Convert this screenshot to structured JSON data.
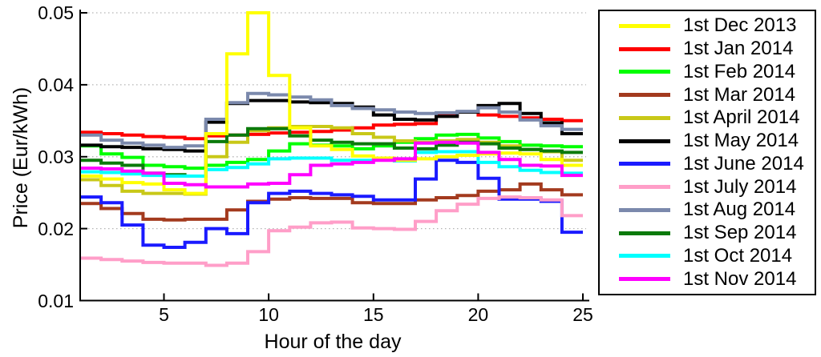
{
  "chart_data": {
    "type": "line",
    "line_style": "stairs",
    "title": "",
    "xlabel": "Hour of the day",
    "ylabel": "Price (Eur/kWh)",
    "xlim": [
      1,
      25
    ],
    "ylim": [
      0.01,
      0.05
    ],
    "xticks": [
      5,
      10,
      15,
      20,
      25
    ],
    "yticks": [
      0.01,
      0.02,
      0.03,
      0.04,
      0.05
    ],
    "xtick_labels": [
      "5",
      "10",
      "15",
      "20",
      "25"
    ],
    "ytick_labels": [
      "0.01",
      "0.02",
      "0.03",
      "0.04",
      "0.05"
    ],
    "grid": "horizontal-dotted",
    "grid_color": "#b3b3b3",
    "axis_color": "#000000",
    "legend_position": "outside-right",
    "x": [
      1,
      2,
      3,
      4,
      5,
      6,
      7,
      8,
      9,
      10,
      11,
      12,
      13,
      14,
      15,
      16,
      17,
      18,
      19,
      20,
      21,
      22,
      23,
      24
    ],
    "series": [
      {
        "name": "1st Dec 2013",
        "color": "#FFFF00",
        "values": [
          0.0273,
          0.0269,
          0.0264,
          0.0262,
          0.0254,
          0.0249,
          0.0332,
          0.0443,
          0.05,
          0.0413,
          0.034,
          0.0315,
          0.031,
          0.0301,
          0.0298,
          0.0295,
          0.0297,
          0.03,
          0.0302,
          0.0304,
          0.0305,
          0.0304,
          0.0296,
          0.0288
        ]
      },
      {
        "name": "1st Jan 2014",
        "color": "#FF0000",
        "values": [
          0.0334,
          0.0332,
          0.033,
          0.0328,
          0.0327,
          0.0325,
          0.0329,
          0.033,
          0.0331,
          0.0333,
          0.0334,
          0.0335,
          0.0337,
          0.034,
          0.0344,
          0.0345,
          0.0346,
          0.0359,
          0.0362,
          0.0358,
          0.0356,
          0.0354,
          0.0352,
          0.035
        ]
      },
      {
        "name": "1st Feb 2014",
        "color": "#00FF00",
        "values": [
          0.0315,
          0.0304,
          0.0299,
          0.0288,
          0.0286,
          0.0284,
          0.0288,
          0.0292,
          0.0296,
          0.0308,
          0.0318,
          0.0316,
          0.0315,
          0.0311,
          0.0315,
          0.032,
          0.0325,
          0.033,
          0.0331,
          0.0326,
          0.0321,
          0.0316,
          0.0315,
          0.0314
        ]
      },
      {
        "name": "1st Mar 2014",
        "color": "#A33A1E",
        "values": [
          0.0235,
          0.0228,
          0.0221,
          0.0213,
          0.0212,
          0.0213,
          0.0213,
          0.0226,
          0.0238,
          0.0241,
          0.0243,
          0.0242,
          0.0242,
          0.0236,
          0.0235,
          0.0235,
          0.024,
          0.0243,
          0.0246,
          0.0252,
          0.0254,
          0.0262,
          0.0254,
          0.0247
        ]
      },
      {
        "name": "1st April 2014",
        "color": "#C8C818",
        "values": [
          0.0268,
          0.026,
          0.0252,
          0.0249,
          0.0249,
          0.0248,
          0.03,
          0.032,
          0.0336,
          0.034,
          0.0342,
          0.0342,
          0.034,
          0.0332,
          0.0327,
          0.0322,
          0.032,
          0.0322,
          0.0324,
          0.032,
          0.0315,
          0.031,
          0.0307,
          0.0295
        ]
      },
      {
        "name": "1st May 2014",
        "color": "#000000",
        "values": [
          0.0316,
          0.0314,
          0.0313,
          0.0311,
          0.031,
          0.0308,
          0.0348,
          0.0374,
          0.0378,
          0.0378,
          0.0376,
          0.0375,
          0.0374,
          0.0369,
          0.0358,
          0.0352,
          0.0351,
          0.0356,
          0.0362,
          0.0371,
          0.0374,
          0.036,
          0.0347,
          0.0332
        ]
      },
      {
        "name": "1st June 2014",
        "color": "#1A1AFF",
        "values": [
          0.0244,
          0.0236,
          0.0205,
          0.0177,
          0.0174,
          0.0181,
          0.02,
          0.0193,
          0.0236,
          0.0249,
          0.0252,
          0.0249,
          0.0247,
          0.0245,
          0.024,
          0.024,
          0.0269,
          0.0295,
          0.0292,
          0.027,
          0.0241,
          0.0241,
          0.0238,
          0.0195
        ]
      },
      {
        "name": "1st July 2014",
        "color": "#FF9EC8",
        "values": [
          0.0159,
          0.0157,
          0.0155,
          0.0153,
          0.0152,
          0.0152,
          0.0149,
          0.0152,
          0.0168,
          0.0197,
          0.0202,
          0.0208,
          0.0209,
          0.0201,
          0.02,
          0.0199,
          0.021,
          0.0225,
          0.0234,
          0.0242,
          0.0244,
          0.0243,
          0.024,
          0.0218
        ]
      },
      {
        "name": "1st Aug 2014",
        "color": "#7B89AC",
        "values": [
          0.033,
          0.0323,
          0.0319,
          0.0316,
          0.0313,
          0.0315,
          0.0352,
          0.0375,
          0.0388,
          0.0386,
          0.0383,
          0.0379,
          0.0371,
          0.0367,
          0.0365,
          0.0362,
          0.036,
          0.0361,
          0.0363,
          0.0368,
          0.0362,
          0.0351,
          0.0343,
          0.0338
        ]
      },
      {
        "name": "1st Sep 2014",
        "color": "#0B7A0B",
        "values": [
          0.0295,
          0.0291,
          0.0288,
          0.0277,
          0.0275,
          0.0273,
          0.0321,
          0.033,
          0.0339,
          0.0339,
          0.0329,
          0.0323,
          0.032,
          0.0318,
          0.0318,
          0.0312,
          0.0311,
          0.0316,
          0.032,
          0.0318,
          0.0312,
          0.031,
          0.0308,
          0.0306
        ]
      },
      {
        "name": "1st Oct 2014",
        "color": "#00FFFF",
        "values": [
          0.0279,
          0.0278,
          0.0276,
          0.0274,
          0.0273,
          0.0273,
          0.0282,
          0.0285,
          0.029,
          0.0297,
          0.0298,
          0.0298,
          0.0295,
          0.0295,
          0.0296,
          0.0294,
          0.0306,
          0.0307,
          0.0307,
          0.0292,
          0.0286,
          0.0281,
          0.0278,
          0.0277
        ]
      },
      {
        "name": "1st Nov 2014",
        "color": "#FF00FF",
        "values": [
          0.0284,
          0.0283,
          0.028,
          0.0277,
          0.0263,
          0.0261,
          0.0258,
          0.0258,
          0.0262,
          0.0263,
          0.0275,
          0.0288,
          0.029,
          0.0292,
          0.0295,
          0.0297,
          0.0319,
          0.032,
          0.0319,
          0.0306,
          0.0296,
          0.0288,
          0.0287,
          0.0274
        ]
      }
    ]
  }
}
